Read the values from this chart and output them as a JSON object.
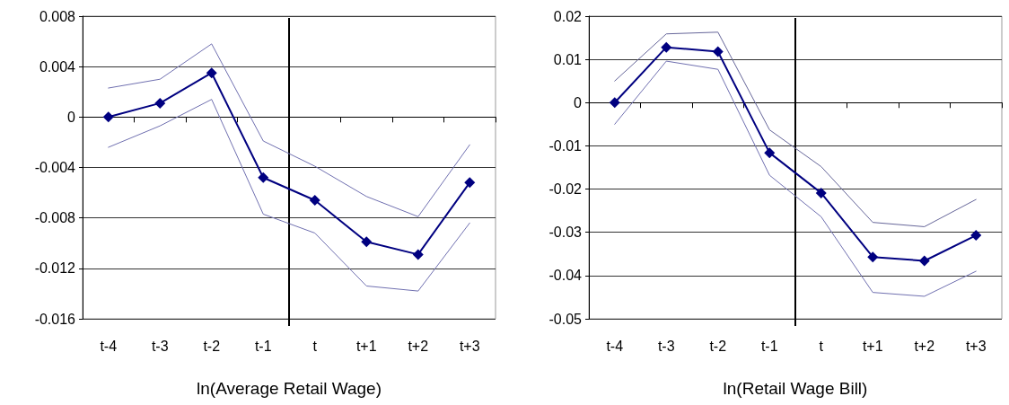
{
  "chart_data": [
    {
      "type": "line",
      "xlabel": "ln(Average Retail Wage)",
      "categories": [
        "t-4",
        "t-3",
        "t-2",
        "t-1",
        "t",
        "t+1",
        "t+2",
        "t+3"
      ],
      "ylim": [
        -0.016,
        0.008
      ],
      "yticks": [
        -0.016,
        -0.012,
        -0.008,
        -0.004,
        0,
        0.004,
        0.008
      ],
      "grid": "y",
      "ref_lines": [
        {
          "axis": "x",
          "value": "t",
          "color": "#000000"
        }
      ],
      "series": [
        {
          "color": "#000080",
          "marker": "diamond",
          "values": [
            0,
            0.0011,
            0.0035,
            -0.0048,
            -0.0066,
            -0.0099,
            -0.0109,
            -0.0052
          ]
        },
        {
          "color": "#7070b0",
          "marker": "none",
          "values": [
            0.0023,
            0.003,
            0.0058,
            -0.0019,
            -0.0039,
            -0.0063,
            -0.0079,
            -0.0022
          ]
        },
        {
          "color": "#7070b0",
          "marker": "none",
          "values": [
            -0.0024,
            -0.0007,
            0.0014,
            -0.0077,
            -0.0092,
            -0.0134,
            -0.0138,
            -0.0084
          ]
        }
      ]
    },
    {
      "type": "line",
      "xlabel": "ln(Retail Wage Bill)",
      "categories": [
        "t-4",
        "t-3",
        "t-2",
        "t-1",
        "t",
        "t+1",
        "t+2",
        "t+3"
      ],
      "ylim": [
        -0.05,
        0.02
      ],
      "yticks": [
        -0.05,
        -0.04,
        -0.03,
        -0.02,
        -0.01,
        0,
        0.01,
        0.02
      ],
      "grid": "y",
      "ref_lines": [
        {
          "axis": "x",
          "value": "t",
          "color": "#000000"
        }
      ],
      "series": [
        {
          "color": "#000080",
          "marker": "diamond",
          "values": [
            0,
            0.0128,
            0.0118,
            -0.0116,
            -0.0209,
            -0.0357,
            -0.0366,
            -0.0307
          ]
        },
        {
          "color": "#666699",
          "marker": "none",
          "values": [
            0.005,
            0.0159,
            0.0163,
            -0.0063,
            -0.0148,
            -0.0277,
            -0.0287,
            -0.0224
          ]
        },
        {
          "color": "#7070b0",
          "marker": "none",
          "values": [
            -0.005,
            0.0096,
            0.0077,
            -0.0168,
            -0.0264,
            -0.0439,
            -0.0448,
            -0.039
          ]
        }
      ]
    }
  ]
}
